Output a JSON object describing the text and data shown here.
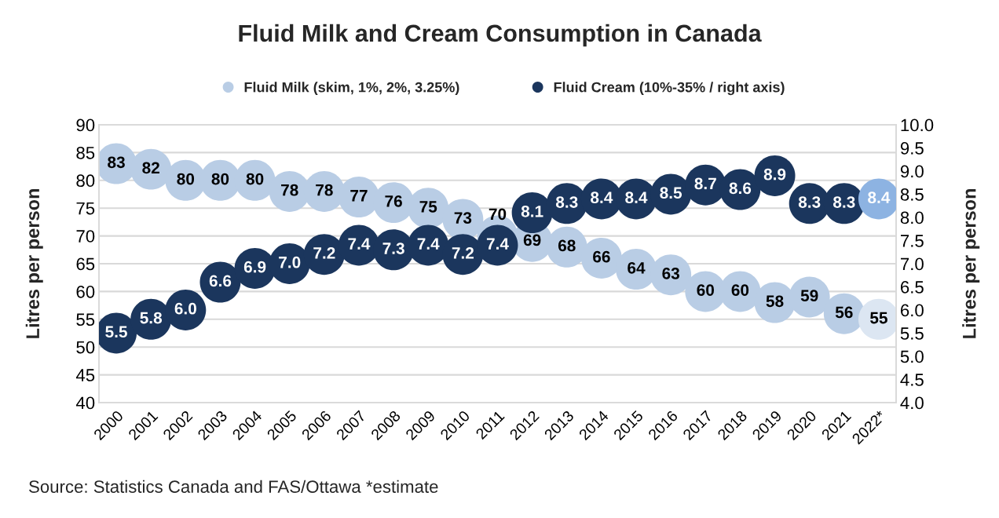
{
  "chart_data": {
    "type": "scatter",
    "title": "Fluid Milk and Cream Consumption in Canada",
    "categories": [
      "2000",
      "2001",
      "2002",
      "2003",
      "2004",
      "2005",
      "2006",
      "2007",
      "2008",
      "2009",
      "2010",
      "2011",
      "2012",
      "2013",
      "2014",
      "2015",
      "2016",
      "2017",
      "2018",
      "2019",
      "2020",
      "2021",
      "2022*"
    ],
    "series": [
      {
        "name": "Fluid Milk (skim, 1%, 2%, 3.25%)",
        "color": "#b9cde5",
        "colors": [
          "#b9cde5",
          "#b9cde5",
          "#b9cde5",
          "#b9cde5",
          "#b9cde5",
          "#b9cde5",
          "#b9cde5",
          "#b9cde5",
          "#b9cde5",
          "#b9cde5",
          "#b9cde5",
          "#b9cde5",
          "#b9cde5",
          "#b9cde5",
          "#b9cde5",
          "#b9cde5",
          "#b9cde5",
          "#b9cde5",
          "#b9cde5",
          "#b9cde5",
          "#b9cde5",
          "#b9cde5",
          "#dce6f2"
        ],
        "values": [
          83,
          82,
          80,
          80,
          80,
          78,
          78,
          77,
          76,
          75,
          73,
          70,
          69,
          68,
          66,
          64,
          63,
          60,
          60,
          58,
          59,
          56,
          55
        ]
      },
      {
        "name": "Fluid Cream (10%-35% / right axis)",
        "axis": "y2",
        "color": "#1b365d",
        "colors": [
          "#1b365d",
          "#1b365d",
          "#1b365d",
          "#1b365d",
          "#1b365d",
          "#1b365d",
          "#1b365d",
          "#1b365d",
          "#1b365d",
          "#1b365d",
          "#1b365d",
          "#1b365d",
          "#1b365d",
          "#1b365d",
          "#1b365d",
          "#1b365d",
          "#1b365d",
          "#1b365d",
          "#1b365d",
          "#1b365d",
          "#1b365d",
          "#1b365d",
          "#8db3e2"
        ],
        "values": [
          5.5,
          5.8,
          6.0,
          6.6,
          6.9,
          7.0,
          7.2,
          7.4,
          7.3,
          7.4,
          7.2,
          7.4,
          8.1,
          8.3,
          8.4,
          8.4,
          8.5,
          8.7,
          8.6,
          8.9,
          8.3,
          8.3,
          8.4
        ],
        "value_labels": [
          "5.5",
          "5.8",
          "6.0",
          "6.6",
          "6.9",
          "7.0",
          "7.2",
          "7.4",
          "7.3",
          "7.4",
          "7.2",
          "7.4",
          "8.1",
          "8.3",
          "8.4",
          "8.4",
          "8.5",
          "8.7",
          "8.6",
          "8.9",
          "8.3",
          "8.3",
          "8.4"
        ]
      }
    ],
    "ylabel": "Litres per person",
    "y2label": "Litres per person",
    "ylim": [
      40,
      90
    ],
    "yticks": [
      40,
      45,
      50,
      55,
      60,
      65,
      70,
      75,
      80,
      85,
      90
    ],
    "y2lim": [
      4,
      10
    ],
    "y2ticks": [
      {
        "value": 4,
        "label": "4.0"
      },
      {
        "value": 4.5,
        "label": "4.5"
      },
      {
        "value": 5,
        "label": "5.0"
      },
      {
        "value": 5.5,
        "label": "5.5"
      },
      {
        "value": 6,
        "label": "6.0"
      },
      {
        "value": 6.5,
        "label": "6.5"
      },
      {
        "value": 7,
        "label": "7.0"
      },
      {
        "value": 7.5,
        "label": "7.5"
      },
      {
        "value": 8,
        "label": "8.0"
      },
      {
        "value": 8.5,
        "label": "8.5"
      },
      {
        "value": 9,
        "label": "9.0"
      },
      {
        "value": 9.5,
        "label": "9.5"
      },
      {
        "value": 10,
        "label": "10.0"
      }
    ],
    "grid": "y",
    "legend": "top",
    "marker": "circle",
    "data_labels": true,
    "annotations": [
      "Source: Statistics Canada and FAS/Ottawa *estimate"
    ]
  }
}
